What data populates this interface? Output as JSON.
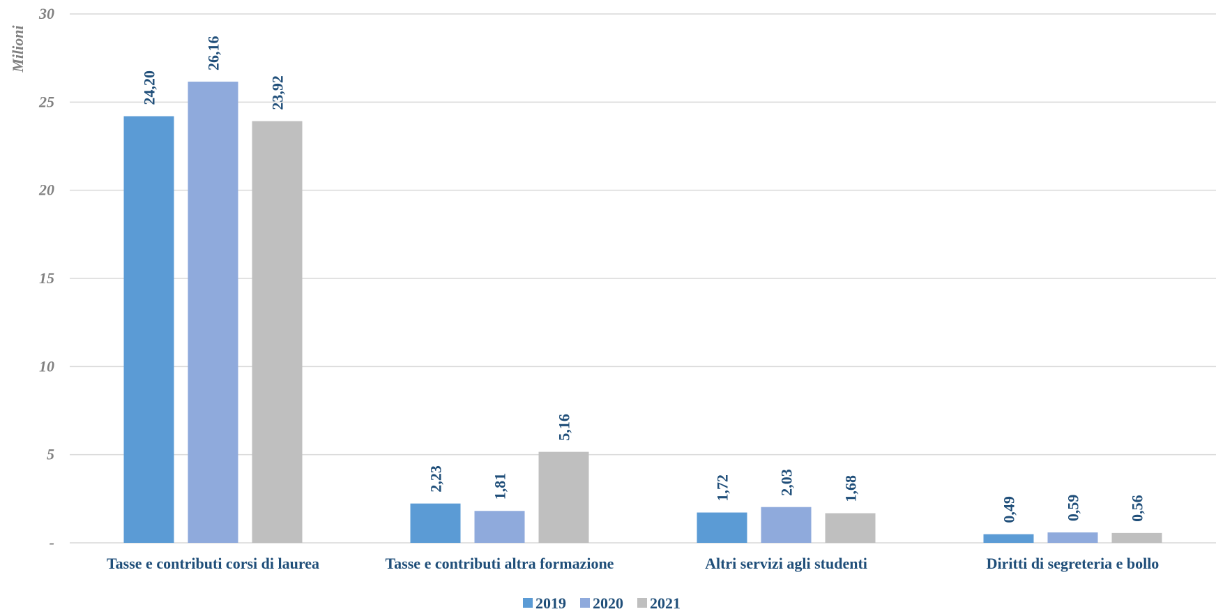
{
  "chart_data": {
    "type": "bar",
    "categories": [
      "Tasse e contributi corsi di laurea",
      "Tasse e contributi altra formazione",
      "Altri servizi agli studenti",
      "Diritti di segreteria e bollo"
    ],
    "series": [
      {
        "name": "2019",
        "color": "#5b9bd5",
        "values": [
          24.2,
          2.23,
          1.72,
          0.49
        ],
        "labels": [
          "24,20",
          "2,23",
          "1,72",
          "0,49"
        ]
      },
      {
        "name": "2020",
        "color": "#8faadc",
        "values": [
          26.16,
          1.81,
          2.03,
          0.59
        ],
        "labels": [
          "26,16",
          "1,81",
          "2,03",
          "0,59"
        ]
      },
      {
        "name": "2021",
        "color": "#bfbfbf",
        "values": [
          23.92,
          5.16,
          1.68,
          0.56
        ],
        "labels": [
          "23,92",
          "5,16",
          "1,68",
          "0,56"
        ]
      }
    ],
    "ylabel": "Milioni",
    "ylim": [
      0,
      30
    ],
    "yticks": [
      {
        "value": 0,
        "label": "-"
      },
      {
        "value": 5,
        "label": "5"
      },
      {
        "value": 10,
        "label": "10"
      },
      {
        "value": 15,
        "label": "15"
      },
      {
        "value": 20,
        "label": "20"
      },
      {
        "value": 25,
        "label": "25"
      },
      {
        "value": 30,
        "label": "30"
      }
    ],
    "grid": true,
    "legend_position": "bottom"
  }
}
